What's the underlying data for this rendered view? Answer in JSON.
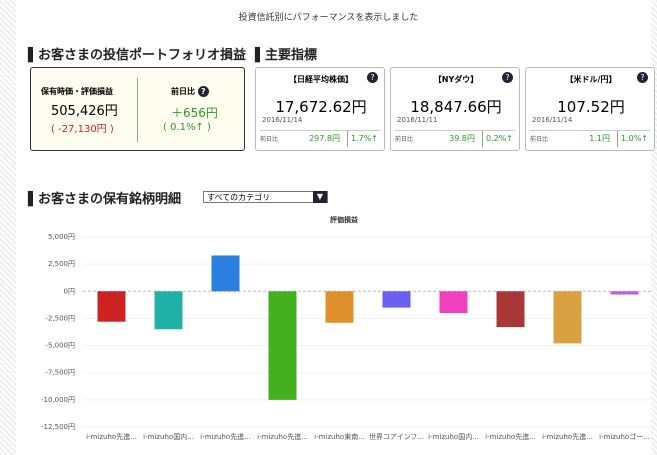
{
  "notice": "投資信託別にパフォーマンスを表示しました",
  "portfolio": {
    "heading": "お客さまの投信ポートフォリオ損益",
    "value_label": "保有時価・評価損益",
    "value": "505,426円",
    "profit": "( -27,130円 )",
    "change_label": "前日比",
    "change": "＋656円",
    "change_pct": "( 0.1%↑ )"
  },
  "indices": {
    "heading": "主要指標",
    "items": [
      {
        "name": "【日経平均株価】",
        "price": "17,672.62円",
        "date": "2016/11/14",
        "change_label": "前日比",
        "change": "297.8円",
        "pct": "1.7%↑"
      },
      {
        "name": "【NYダウ】",
        "price": "18,847.66円",
        "date": "2016/11/11",
        "change_label": "前日比",
        "change": "39.8円",
        "pct": "0.2%↑"
      },
      {
        "name": "【米ドル/円】",
        "price": "107.52円",
        "date": "2016/11/14",
        "change_label": "前日比",
        "change": "1.1円",
        "pct": "1.0%↑"
      }
    ]
  },
  "holdings": {
    "heading": "お客さまの保有銘柄明細",
    "filter": "すべてのカテゴリ"
  },
  "chart_data": {
    "type": "bar",
    "title": "評価損益",
    "categories": [
      "i-mizuho先進...",
      "i-mizuho国内...",
      "i-mizuho先進...",
      "i-mizuho先進...",
      "i-mizuho東南...",
      "世界コアインフ...",
      "i-mizuho国内...",
      "i-mizuho先進...",
      "i-mizuho先進...",
      "i-mizuhoゴー..."
    ],
    "values": [
      -2800,
      -3500,
      3300,
      -10000,
      -2900,
      -1500,
      -2000,
      -3300,
      -4800,
      -300
    ],
    "colors": [
      "#cc2222",
      "#20b0a8",
      "#2a7fe0",
      "#44b020",
      "#e0902a",
      "#6a5ff0",
      "#f040c0",
      "#a83838",
      "#d8a040",
      "#c060e0"
    ],
    "ylim": [
      -12500,
      5000
    ],
    "yticks": [
      {
        "value": 5000,
        "label": "5,000円"
      },
      {
        "value": 2500,
        "label": "2,500円"
      },
      {
        "value": 0,
        "label": "0円"
      },
      {
        "value": -2500,
        "label": "-2,500円"
      },
      {
        "value": -5000,
        "label": "-5,000円"
      },
      {
        "value": -7500,
        "label": "-7,500円"
      },
      {
        "value": -10000,
        "label": "-10,000円"
      },
      {
        "value": -12500,
        "label": "-12,500円"
      }
    ],
    "grid": true
  }
}
